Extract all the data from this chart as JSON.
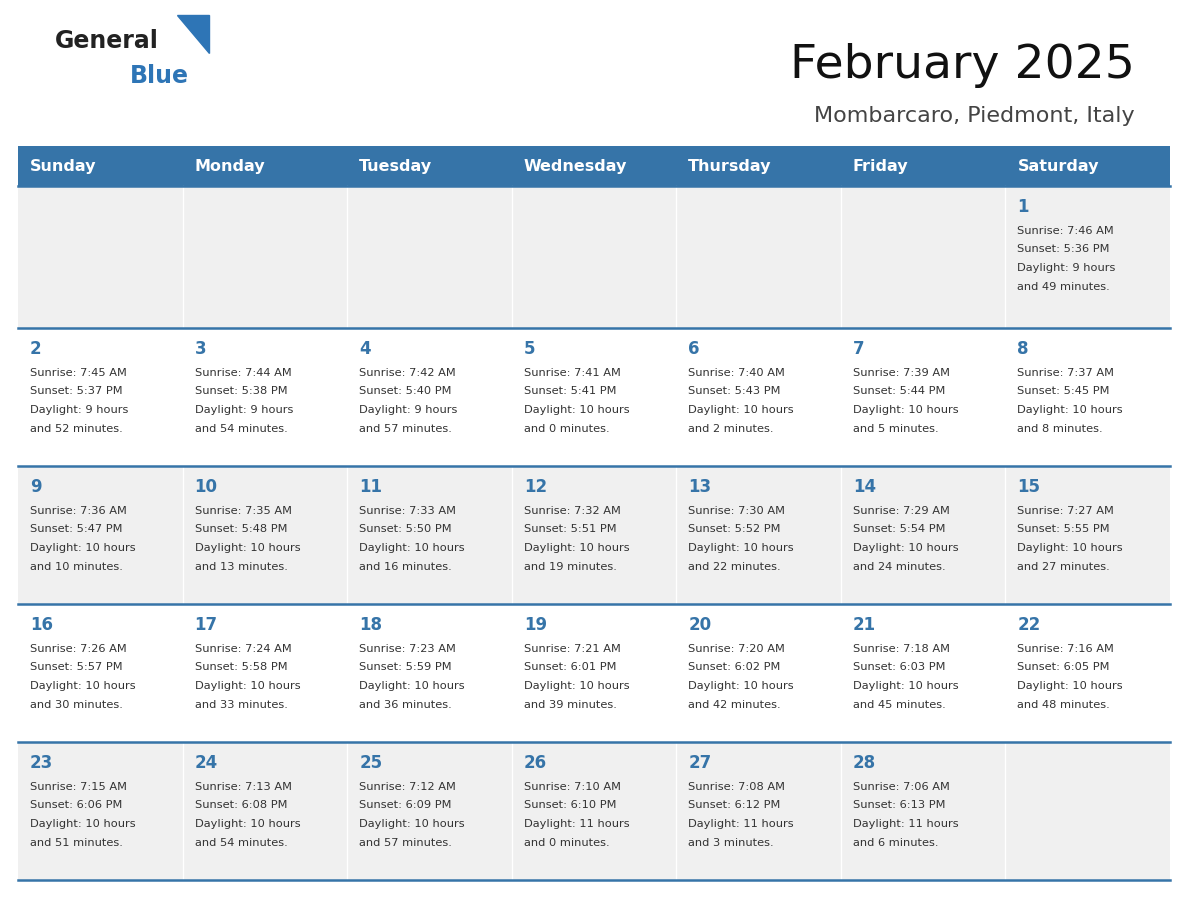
{
  "title": "February 2025",
  "subtitle": "Mombarcaro, Piedmont, Italy",
  "days_of_week": [
    "Sunday",
    "Monday",
    "Tuesday",
    "Wednesday",
    "Thursday",
    "Friday",
    "Saturday"
  ],
  "header_bg": "#3674A8",
  "header_text": "#FFFFFF",
  "cell_bg_odd": "#F0F0F0",
  "cell_bg_even": "#FFFFFF",
  "border_color": "#3674A8",
  "day_number_color": "#3674A8",
  "text_color": "#333333",
  "logo_general_color": "#222222",
  "logo_blue_color": "#2E75B6",
  "logo_triangle_color": "#2E75B6",
  "calendar_data": [
    [
      {
        "day": null,
        "sunrise": null,
        "sunset": null,
        "daylight_line1": null,
        "daylight_line2": null
      },
      {
        "day": null,
        "sunrise": null,
        "sunset": null,
        "daylight_line1": null,
        "daylight_line2": null
      },
      {
        "day": null,
        "sunrise": null,
        "sunset": null,
        "daylight_line1": null,
        "daylight_line2": null
      },
      {
        "day": null,
        "sunrise": null,
        "sunset": null,
        "daylight_line1": null,
        "daylight_line2": null
      },
      {
        "day": null,
        "sunrise": null,
        "sunset": null,
        "daylight_line1": null,
        "daylight_line2": null
      },
      {
        "day": null,
        "sunrise": null,
        "sunset": null,
        "daylight_line1": null,
        "daylight_line2": null
      },
      {
        "day": 1,
        "sunrise": "Sunrise: 7:46 AM",
        "sunset": "Sunset: 5:36 PM",
        "daylight_line1": "Daylight: 9 hours",
        "daylight_line2": "and 49 minutes."
      }
    ],
    [
      {
        "day": 2,
        "sunrise": "Sunrise: 7:45 AM",
        "sunset": "Sunset: 5:37 PM",
        "daylight_line1": "Daylight: 9 hours",
        "daylight_line2": "and 52 minutes."
      },
      {
        "day": 3,
        "sunrise": "Sunrise: 7:44 AM",
        "sunset": "Sunset: 5:38 PM",
        "daylight_line1": "Daylight: 9 hours",
        "daylight_line2": "and 54 minutes."
      },
      {
        "day": 4,
        "sunrise": "Sunrise: 7:42 AM",
        "sunset": "Sunset: 5:40 PM",
        "daylight_line1": "Daylight: 9 hours",
        "daylight_line2": "and 57 minutes."
      },
      {
        "day": 5,
        "sunrise": "Sunrise: 7:41 AM",
        "sunset": "Sunset: 5:41 PM",
        "daylight_line1": "Daylight: 10 hours",
        "daylight_line2": "and 0 minutes."
      },
      {
        "day": 6,
        "sunrise": "Sunrise: 7:40 AM",
        "sunset": "Sunset: 5:43 PM",
        "daylight_line1": "Daylight: 10 hours",
        "daylight_line2": "and 2 minutes."
      },
      {
        "day": 7,
        "sunrise": "Sunrise: 7:39 AM",
        "sunset": "Sunset: 5:44 PM",
        "daylight_line1": "Daylight: 10 hours",
        "daylight_line2": "and 5 minutes."
      },
      {
        "day": 8,
        "sunrise": "Sunrise: 7:37 AM",
        "sunset": "Sunset: 5:45 PM",
        "daylight_line1": "Daylight: 10 hours",
        "daylight_line2": "and 8 minutes."
      }
    ],
    [
      {
        "day": 9,
        "sunrise": "Sunrise: 7:36 AM",
        "sunset": "Sunset: 5:47 PM",
        "daylight_line1": "Daylight: 10 hours",
        "daylight_line2": "and 10 minutes."
      },
      {
        "day": 10,
        "sunrise": "Sunrise: 7:35 AM",
        "sunset": "Sunset: 5:48 PM",
        "daylight_line1": "Daylight: 10 hours",
        "daylight_line2": "and 13 minutes."
      },
      {
        "day": 11,
        "sunrise": "Sunrise: 7:33 AM",
        "sunset": "Sunset: 5:50 PM",
        "daylight_line1": "Daylight: 10 hours",
        "daylight_line2": "and 16 minutes."
      },
      {
        "day": 12,
        "sunrise": "Sunrise: 7:32 AM",
        "sunset": "Sunset: 5:51 PM",
        "daylight_line1": "Daylight: 10 hours",
        "daylight_line2": "and 19 minutes."
      },
      {
        "day": 13,
        "sunrise": "Sunrise: 7:30 AM",
        "sunset": "Sunset: 5:52 PM",
        "daylight_line1": "Daylight: 10 hours",
        "daylight_line2": "and 22 minutes."
      },
      {
        "day": 14,
        "sunrise": "Sunrise: 7:29 AM",
        "sunset": "Sunset: 5:54 PM",
        "daylight_line1": "Daylight: 10 hours",
        "daylight_line2": "and 24 minutes."
      },
      {
        "day": 15,
        "sunrise": "Sunrise: 7:27 AM",
        "sunset": "Sunset: 5:55 PM",
        "daylight_line1": "Daylight: 10 hours",
        "daylight_line2": "and 27 minutes."
      }
    ],
    [
      {
        "day": 16,
        "sunrise": "Sunrise: 7:26 AM",
        "sunset": "Sunset: 5:57 PM",
        "daylight_line1": "Daylight: 10 hours",
        "daylight_line2": "and 30 minutes."
      },
      {
        "day": 17,
        "sunrise": "Sunrise: 7:24 AM",
        "sunset": "Sunset: 5:58 PM",
        "daylight_line1": "Daylight: 10 hours",
        "daylight_line2": "and 33 minutes."
      },
      {
        "day": 18,
        "sunrise": "Sunrise: 7:23 AM",
        "sunset": "Sunset: 5:59 PM",
        "daylight_line1": "Daylight: 10 hours",
        "daylight_line2": "and 36 minutes."
      },
      {
        "day": 19,
        "sunrise": "Sunrise: 7:21 AM",
        "sunset": "Sunset: 6:01 PM",
        "daylight_line1": "Daylight: 10 hours",
        "daylight_line2": "and 39 minutes."
      },
      {
        "day": 20,
        "sunrise": "Sunrise: 7:20 AM",
        "sunset": "Sunset: 6:02 PM",
        "daylight_line1": "Daylight: 10 hours",
        "daylight_line2": "and 42 minutes."
      },
      {
        "day": 21,
        "sunrise": "Sunrise: 7:18 AM",
        "sunset": "Sunset: 6:03 PM",
        "daylight_line1": "Daylight: 10 hours",
        "daylight_line2": "and 45 minutes."
      },
      {
        "day": 22,
        "sunrise": "Sunrise: 7:16 AM",
        "sunset": "Sunset: 6:05 PM",
        "daylight_line1": "Daylight: 10 hours",
        "daylight_line2": "and 48 minutes."
      }
    ],
    [
      {
        "day": 23,
        "sunrise": "Sunrise: 7:15 AM",
        "sunset": "Sunset: 6:06 PM",
        "daylight_line1": "Daylight: 10 hours",
        "daylight_line2": "and 51 minutes."
      },
      {
        "day": 24,
        "sunrise": "Sunrise: 7:13 AM",
        "sunset": "Sunset: 6:08 PM",
        "daylight_line1": "Daylight: 10 hours",
        "daylight_line2": "and 54 minutes."
      },
      {
        "day": 25,
        "sunrise": "Sunrise: 7:12 AM",
        "sunset": "Sunset: 6:09 PM",
        "daylight_line1": "Daylight: 10 hours",
        "daylight_line2": "and 57 minutes."
      },
      {
        "day": 26,
        "sunrise": "Sunrise: 7:10 AM",
        "sunset": "Sunset: 6:10 PM",
        "daylight_line1": "Daylight: 11 hours",
        "daylight_line2": "and 0 minutes."
      },
      {
        "day": 27,
        "sunrise": "Sunrise: 7:08 AM",
        "sunset": "Sunset: 6:12 PM",
        "daylight_line1": "Daylight: 11 hours",
        "daylight_line2": "and 3 minutes."
      },
      {
        "day": 28,
        "sunrise": "Sunrise: 7:06 AM",
        "sunset": "Sunset: 6:13 PM",
        "daylight_line1": "Daylight: 11 hours",
        "daylight_line2": "and 6 minutes."
      },
      {
        "day": null,
        "sunrise": null,
        "sunset": null,
        "daylight_line1": null,
        "daylight_line2": null
      }
    ]
  ]
}
